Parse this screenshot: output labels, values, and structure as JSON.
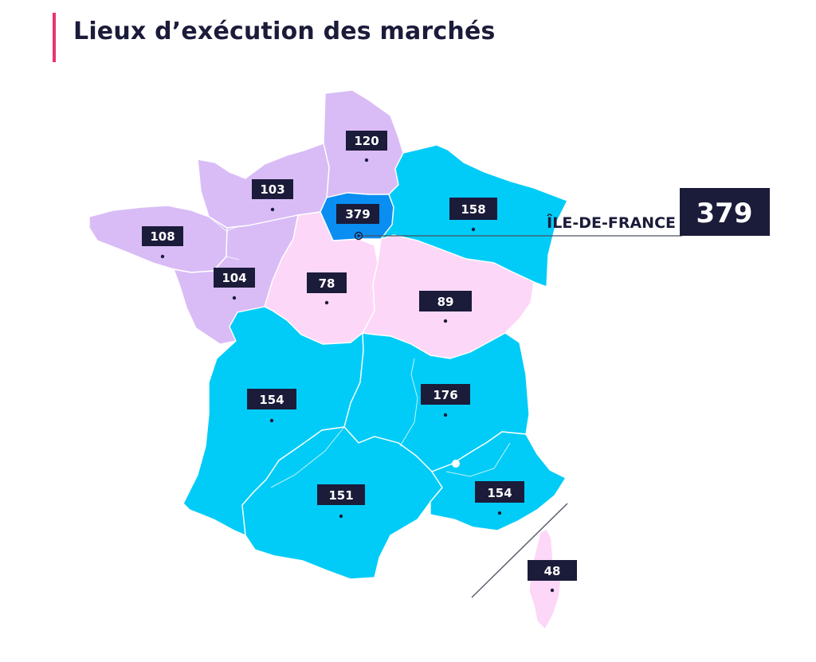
{
  "title": "Lieux d’exécution des marchés",
  "colors": {
    "low": "#d9bcf6",
    "mid": "#fdd7f7",
    "high": "#00ccf7",
    "top": "#0a8ef2",
    "label_bg": "#1b1b3a",
    "accent": "#e8336e"
  },
  "callout": {
    "region": "ÎLE-DE-FRANCE",
    "value": "379"
  },
  "regions": [
    {
      "id": "hauts-de-france",
      "value": "120",
      "tier": "low"
    },
    {
      "id": "normandie",
      "value": "103",
      "tier": "low"
    },
    {
      "id": "bretagne",
      "value": "108",
      "tier": "low"
    },
    {
      "id": "pays-de-la-loire",
      "value": "104",
      "tier": "low"
    },
    {
      "id": "ile-de-france",
      "value": "379",
      "tier": "top"
    },
    {
      "id": "grand-est",
      "value": "158",
      "tier": "high"
    },
    {
      "id": "centre-val-de-loire",
      "value": "78",
      "tier": "mid"
    },
    {
      "id": "bourgogne-franche-comte",
      "value": "89",
      "tier": "mid"
    },
    {
      "id": "nouvelle-aquitaine",
      "value": "154",
      "tier": "high"
    },
    {
      "id": "auvergne-rhone-alpes",
      "value": "176",
      "tier": "high"
    },
    {
      "id": "occitanie",
      "value": "151",
      "tier": "high"
    },
    {
      "id": "provence-alpes-cote-d-azur",
      "value": "154",
      "tier": "high"
    },
    {
      "id": "corse",
      "value": "48",
      "tier": "mid"
    }
  ]
}
